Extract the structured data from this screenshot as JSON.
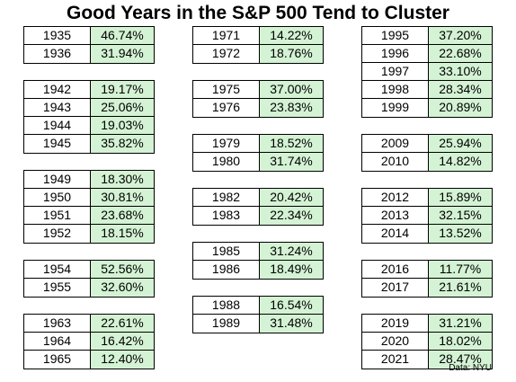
{
  "chart_data": {
    "type": "table",
    "title": "Good Years in the S&P 500 Tend to Cluster",
    "source": "Data: NYU",
    "columns": [
      {
        "groups": [
          [
            {
              "year": "1935",
              "return": "46.74%"
            },
            {
              "year": "1936",
              "return": "31.94%"
            }
          ],
          [
            {
              "year": "1942",
              "return": "19.17%"
            },
            {
              "year": "1943",
              "return": "25.06%"
            },
            {
              "year": "1944",
              "return": "19.03%"
            },
            {
              "year": "1945",
              "return": "35.82%"
            }
          ],
          [
            {
              "year": "1949",
              "return": "18.30%"
            },
            {
              "year": "1950",
              "return": "30.81%"
            },
            {
              "year": "1951",
              "return": "23.68%"
            },
            {
              "year": "1952",
              "return": "18.15%"
            }
          ],
          [
            {
              "year": "1954",
              "return": "52.56%"
            },
            {
              "year": "1955",
              "return": "32.60%"
            }
          ],
          [
            {
              "year": "1963",
              "return": "22.61%"
            },
            {
              "year": "1964",
              "return": "16.42%"
            },
            {
              "year": "1965",
              "return": "12.40%"
            }
          ]
        ]
      },
      {
        "groups": [
          [
            {
              "year": "1971",
              "return": "14.22%"
            },
            {
              "year": "1972",
              "return": "18.76%"
            }
          ],
          [
            {
              "year": "1975",
              "return": "37.00%"
            },
            {
              "year": "1976",
              "return": "23.83%"
            }
          ],
          [
            {
              "year": "1979",
              "return": "18.52%"
            },
            {
              "year": "1980",
              "return": "31.74%"
            }
          ],
          [
            {
              "year": "1982",
              "return": "20.42%"
            },
            {
              "year": "1983",
              "return": "22.34%"
            }
          ],
          [
            {
              "year": "1985",
              "return": "31.24%"
            },
            {
              "year": "1986",
              "return": "18.49%"
            }
          ],
          [
            {
              "year": "1988",
              "return": "16.54%"
            },
            {
              "year": "1989",
              "return": "31.48%"
            }
          ]
        ]
      },
      {
        "groups": [
          [
            {
              "year": "1995",
              "return": "37.20%"
            },
            {
              "year": "1996",
              "return": "22.68%"
            },
            {
              "year": "1997",
              "return": "33.10%"
            },
            {
              "year": "1998",
              "return": "28.34%"
            },
            {
              "year": "1999",
              "return": "20.89%"
            }
          ],
          [
            {
              "year": "2009",
              "return": "25.94%"
            },
            {
              "year": "2010",
              "return": "14.82%"
            }
          ],
          [
            {
              "year": "2012",
              "return": "15.89%"
            },
            {
              "year": "2013",
              "return": "32.15%"
            },
            {
              "year": "2014",
              "return": "13.52%"
            }
          ],
          [
            {
              "year": "2016",
              "return": "11.77%"
            },
            {
              "year": "2017",
              "return": "21.61%"
            }
          ],
          [
            {
              "year": "2019",
              "return": "31.21%"
            },
            {
              "year": "2020",
              "return": "18.02%"
            },
            {
              "year": "2021",
              "return": "28.47%"
            }
          ]
        ]
      }
    ]
  }
}
